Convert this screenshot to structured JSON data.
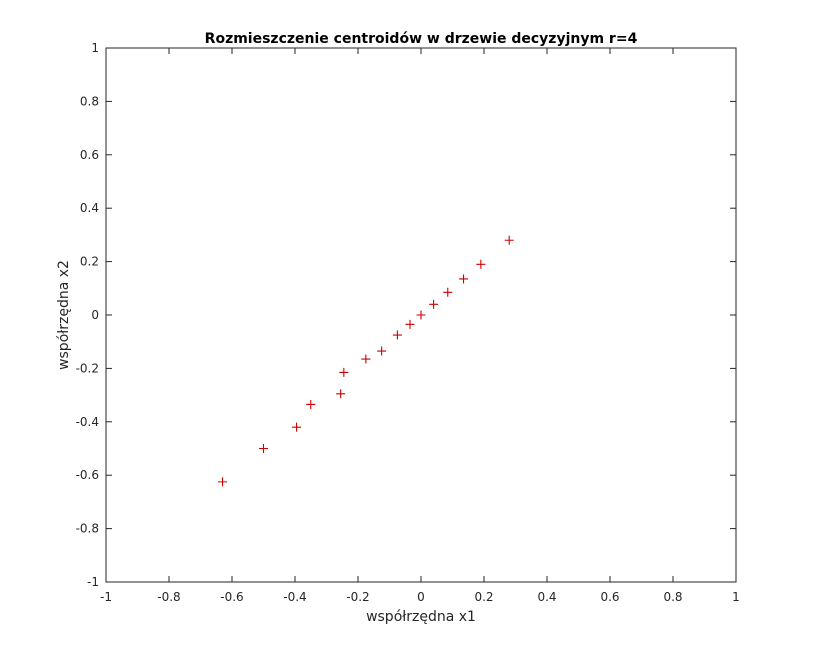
{
  "chart_data": {
    "type": "scatter",
    "title": "Rozmieszczenie centroidów w drzewie decyzyjnym r=4",
    "xlabel": "współrzędna x1",
    "ylabel": "współrzędna x2",
    "xlim": [
      -1,
      1
    ],
    "ylim": [
      -1,
      1
    ],
    "xticks": [
      -1,
      -0.8,
      -0.6,
      -0.4,
      -0.2,
      0,
      0.2,
      0.4,
      0.6,
      0.8,
      1
    ],
    "yticks": [
      -1,
      -0.8,
      -0.6,
      -0.4,
      -0.2,
      0,
      0.2,
      0.4,
      0.6,
      0.8,
      1
    ],
    "xtick_labels": [
      "-1",
      "-0.8",
      "-0.6",
      "-0.4",
      "-0.2",
      "0",
      "0.2",
      "0.4",
      "0.6",
      "0.8",
      "1"
    ],
    "ytick_labels": [
      "-1",
      "-0.8",
      "-0.6",
      "-0.4",
      "-0.2",
      "0",
      "0.2",
      "0.4",
      "0.6",
      "0.8",
      "1"
    ],
    "grid": false,
    "box": true,
    "marker": "+",
    "marker_color": "#cc0000",
    "axis_color": "#262626",
    "series": [
      {
        "x": [
          -0.63,
          -0.5,
          -0.395,
          -0.35,
          -0.255,
          -0.245,
          -0.175,
          -0.125,
          -0.075,
          -0.035,
          0.0,
          0.04,
          0.085,
          0.135,
          0.19,
          0.28
        ],
        "y": [
          -0.625,
          -0.5,
          -0.42,
          -0.335,
          -0.295,
          -0.215,
          -0.165,
          -0.135,
          -0.075,
          -0.035,
          0.0,
          0.04,
          0.085,
          0.135,
          0.19,
          0.28
        ]
      }
    ]
  }
}
